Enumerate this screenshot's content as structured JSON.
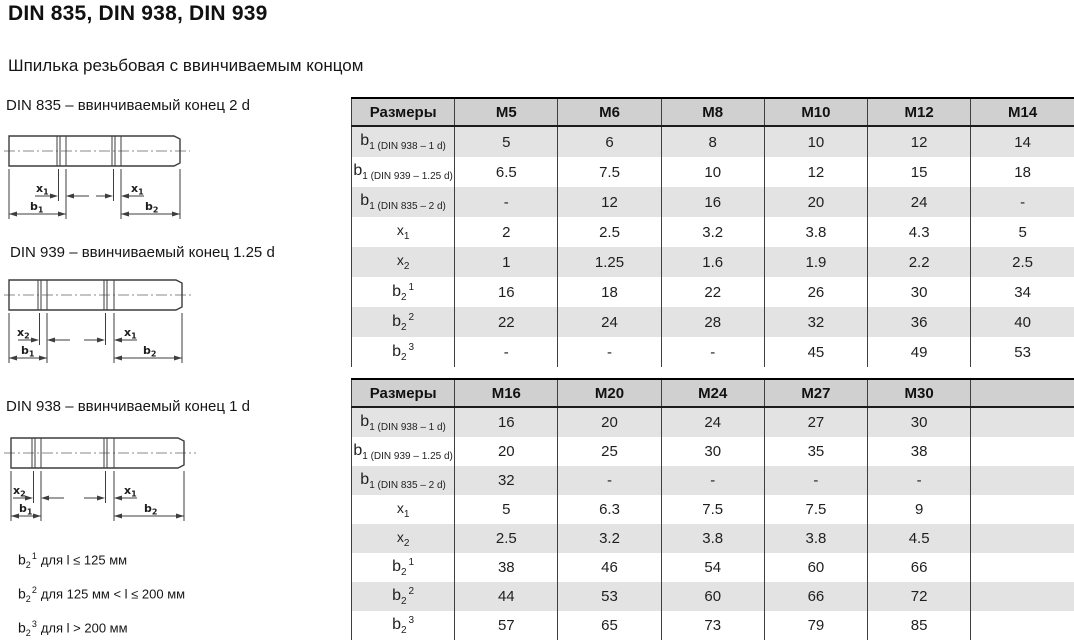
{
  "title": "DIN 835, DIN 938, DIN 939",
  "subtitle": "Шпилька резьбовая с ввинчиваемым концом",
  "colors": {
    "header_bg": "#d0d0d0",
    "row_shade": "#e3e3e3",
    "grid_line": "#3f3f3f",
    "text": "#1f1f1f",
    "line_art": "#3d3d3d"
  },
  "drawings": [
    {
      "caption": "DIN 835 – ввинчиваемый конец 2 d",
      "dim_x_left": {
        "base": "x",
        "sub": "1"
      },
      "dim_x_right": {
        "base": "x",
        "sub": "1"
      },
      "dim_b_left": {
        "base": "b",
        "sub": "1"
      },
      "dim_b_right": {
        "base": "b",
        "sub": "2"
      }
    },
    {
      "caption": "DIN 939 – ввинчиваемый конец 1.25 d",
      "dim_x_left": {
        "base": "x",
        "sub": "2"
      },
      "dim_x_right": {
        "base": "x",
        "sub": "1"
      },
      "dim_b_left": {
        "base": "b",
        "sub": "1"
      },
      "dim_b_right": {
        "base": "b",
        "sub": "2"
      }
    },
    {
      "caption": "DIN 938 – ввинчиваемый конец 1 d",
      "dim_x_left": {
        "base": "x",
        "sub": "2"
      },
      "dim_x_right": {
        "base": "x",
        "sub": "1"
      },
      "dim_b_left": {
        "base": "b",
        "sub": "1"
      },
      "dim_b_right": {
        "base": "b",
        "sub": "2"
      }
    }
  ],
  "tables": [
    {
      "header": [
        "Размеры",
        "M5",
        "M6",
        "M8",
        "M10",
        "M12",
        "M14"
      ],
      "rows": [
        {
          "label": {
            "base": "b",
            "sub": "1 (DIN 938 – 1 d)"
          },
          "values": [
            "5",
            "6",
            "8",
            "10",
            "12",
            "14"
          ]
        },
        {
          "label": {
            "base": "b",
            "sub": "1 (DIN 939 – 1.25 d)"
          },
          "values": [
            "6.5",
            "7.5",
            "10",
            "12",
            "15",
            "18"
          ]
        },
        {
          "label": {
            "base": "b",
            "sub": "1 (DIN 835 – 2 d)"
          },
          "values": [
            "-",
            "12",
            "16",
            "20",
            "24",
            "-"
          ]
        },
        {
          "label": {
            "base": "x",
            "sub": "1"
          },
          "values": [
            "2",
            "2.5",
            "3.2",
            "3.8",
            "4.3",
            "5"
          ]
        },
        {
          "label": {
            "base": "x",
            "sub": "2"
          },
          "values": [
            "1",
            "1.25",
            "1.6",
            "1.9",
            "2.2",
            "2.5"
          ]
        },
        {
          "label": {
            "base": "b",
            "sub": "2",
            "sup": "1"
          },
          "values": [
            "16",
            "18",
            "22",
            "26",
            "30",
            "34"
          ]
        },
        {
          "label": {
            "base": "b",
            "sub": "2",
            "sup": "2"
          },
          "values": [
            "22",
            "24",
            "28",
            "32",
            "36",
            "40"
          ]
        },
        {
          "label": {
            "base": "b",
            "sub": "2",
            "sup": "3"
          },
          "values": [
            "-",
            "-",
            "-",
            "45",
            "49",
            "53"
          ]
        }
      ]
    },
    {
      "header": [
        "Размеры",
        "M16",
        "M20",
        "M24",
        "M27",
        "M30",
        ""
      ],
      "rows": [
        {
          "label": {
            "base": "b",
            "sub": "1 (DIN 938 – 1 d)"
          },
          "values": [
            "16",
            "20",
            "24",
            "27",
            "30",
            ""
          ]
        },
        {
          "label": {
            "base": "b",
            "sub": "1 (DIN 939 – 1.25 d)"
          },
          "values": [
            "20",
            "25",
            "30",
            "35",
            "38",
            ""
          ]
        },
        {
          "label": {
            "base": "b",
            "sub": "1 (DIN 835 – 2 d)"
          },
          "values": [
            "32",
            "-",
            "-",
            "-",
            "-",
            ""
          ]
        },
        {
          "label": {
            "base": "x",
            "sub": "1"
          },
          "values": [
            "5",
            "6.3",
            "7.5",
            "7.5",
            "9",
            ""
          ]
        },
        {
          "label": {
            "base": "x",
            "sub": "2"
          },
          "values": [
            "2.5",
            "3.2",
            "3.8",
            "3.8",
            "4.5",
            ""
          ]
        },
        {
          "label": {
            "base": "b",
            "sub": "2",
            "sup": "1"
          },
          "values": [
            "38",
            "46",
            "54",
            "60",
            "66",
            ""
          ]
        },
        {
          "label": {
            "base": "b",
            "sub": "2",
            "sup": "2"
          },
          "values": [
            "44",
            "53",
            "60",
            "66",
            "72",
            ""
          ]
        },
        {
          "label": {
            "base": "b",
            "sub": "2",
            "sup": "3"
          },
          "values": [
            "57",
            "65",
            "73",
            "79",
            "85",
            ""
          ]
        }
      ]
    }
  ],
  "footnotes": [
    {
      "base": "b",
      "sub": "2",
      "sup": "1",
      "text": "для l ≤ 125 мм"
    },
    {
      "base": "b",
      "sub": "2",
      "sup": "2",
      "text": "для 125 мм < l ≤ 200 мм"
    },
    {
      "base": "b",
      "sub": "2",
      "sup": "3",
      "text": "для l > 200 мм"
    }
  ]
}
